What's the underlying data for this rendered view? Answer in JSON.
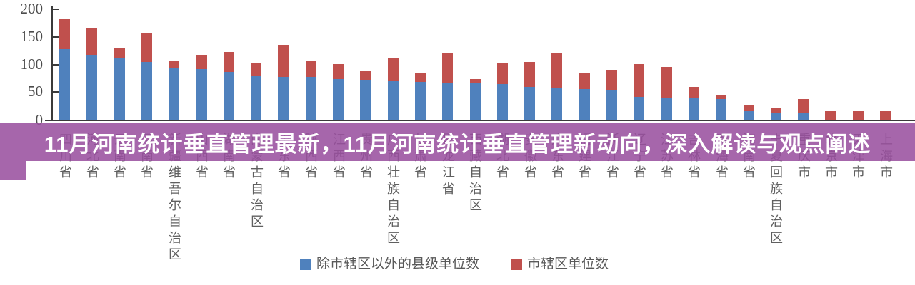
{
  "banner": {
    "text": "11月河南统计垂直管理最新，11月河南统计垂直管理新动向，深入解读与观点阐述",
    "bg_color": "rgba(153,79,158,0.87)",
    "text_color": "#ffffff"
  },
  "chart_data": {
    "type": "bar",
    "stacked": true,
    "title": "",
    "xlabel": "",
    "ylabel": "",
    "ylim": [
      0,
      200
    ],
    "yticks": [
      0,
      50,
      100,
      150,
      200
    ],
    "grid": false,
    "legend_position": "bottom-center",
    "categories": [
      "四川省",
      "河北省",
      "云南省",
      "河南省",
      "新疆维吾尔自治区",
      "山西省",
      "湖南省",
      "内蒙古自治区",
      "山东省",
      "陕西省",
      "江西省",
      "贵州省",
      "广西壮族自治区",
      "甘肃省",
      "黑龙江省",
      "西藏自治区",
      "湖北省",
      "安徽省",
      "广东省",
      "福建省",
      "浙江省",
      "辽宁省",
      "江苏省",
      "吉林省",
      "青海省",
      "海南省",
      "宁夏回族自治区",
      "重庆市",
      "北京市",
      "天津市",
      "上海市"
    ],
    "series": [
      {
        "name": "除市辖区以外的县级单位数",
        "color": "#4F81BD",
        "values": [
          128,
          118,
          112,
          105,
          93,
          91,
          86,
          80,
          78,
          77,
          73,
          72,
          70,
          69,
          67,
          66,
          64,
          59,
          57,
          56,
          53,
          41,
          40,
          39,
          37,
          15,
          13,
          12,
          0,
          0,
          0
        ]
      },
      {
        "name": "市辖区单位数",
        "color": "#C0504D",
        "values": [
          55,
          49,
          17,
          53,
          13,
          26,
          36,
          23,
          58,
          30,
          27,
          16,
          41,
          17,
          54,
          8,
          39,
          45,
          65,
          29,
          37,
          59,
          55,
          21,
          7,
          10,
          9,
          26,
          16,
          16,
          16
        ]
      }
    ]
  },
  "axis": {
    "line_color": "#3a3a3a",
    "tick_label_color": "#4b4b4b",
    "category_label_color": "#5f5f5f"
  }
}
